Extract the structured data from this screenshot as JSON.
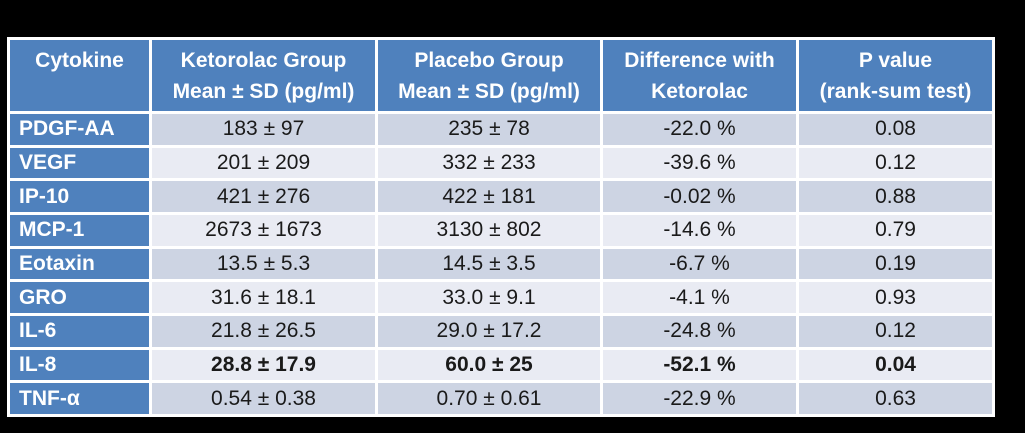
{
  "colors": {
    "background": "#000000",
    "header_blue": "#4F81BD",
    "row_band_dark": "#CDD4E3",
    "row_band_light": "#E9EBF3",
    "border_white": "#FFFFFF",
    "data_text": "#1A1A1A",
    "header_text": "#FFFFFF"
  },
  "table": {
    "header": [
      {
        "line1": "Cytokine",
        "line2": ""
      },
      {
        "line1": "Ketorolac Group",
        "line2": "Mean ± SD (pg/ml)"
      },
      {
        "line1": "Placebo Group",
        "line2": "Mean ± SD (pg/ml)"
      },
      {
        "line1": "Difference with",
        "line2": "Ketorolac"
      },
      {
        "line1": "P value",
        "line2": "(rank-sum test)"
      }
    ],
    "rows": [
      {
        "cytokine": "PDGF-AA",
        "ketorolac": "183 ± 97",
        "placebo": "235 ± 78",
        "difference": "-22.0 %",
        "p_value": "0.08",
        "emphasized": false
      },
      {
        "cytokine": "VEGF",
        "ketorolac": "201 ± 209",
        "placebo": "332 ± 233",
        "difference": "-39.6 %",
        "p_value": "0.12",
        "emphasized": false
      },
      {
        "cytokine": "IP-10",
        "ketorolac": "421 ± 276",
        "placebo": "422 ± 181",
        "difference": "-0.02 %",
        "p_value": "0.88",
        "emphasized": false
      },
      {
        "cytokine": "MCP-1",
        "ketorolac": "2673 ± 1673",
        "placebo": "3130 ± 802",
        "difference": "-14.6 %",
        "p_value": "0.79",
        "emphasized": false
      },
      {
        "cytokine": "Eotaxin",
        "ketorolac": "13.5 ± 5.3",
        "placebo": "14.5 ± 3.5",
        "difference": "-6.7 %",
        "p_value": "0.19",
        "emphasized": false
      },
      {
        "cytokine": "GRO",
        "ketorolac": "31.6 ± 18.1",
        "placebo": "33.0 ± 9.1",
        "difference": "-4.1 %",
        "p_value": "0.93",
        "emphasized": false
      },
      {
        "cytokine": "IL-6",
        "ketorolac": "21.8 ± 26.5",
        "placebo": "29.0 ± 17.2",
        "difference": "-24.8 %",
        "p_value": "0.12",
        "emphasized": false
      },
      {
        "cytokine": "IL-8",
        "ketorolac": "28.8 ± 17.9",
        "placebo": "60.0 ± 25",
        "difference": "-52.1 %",
        "p_value": "0.04",
        "emphasized": true
      },
      {
        "cytokine": "TNF-α",
        "ketorolac": "0.54 ± 0.38",
        "placebo": "0.70 ± 0.61",
        "difference": "-22.9 %",
        "p_value": "0.63",
        "emphasized": false
      }
    ]
  }
}
